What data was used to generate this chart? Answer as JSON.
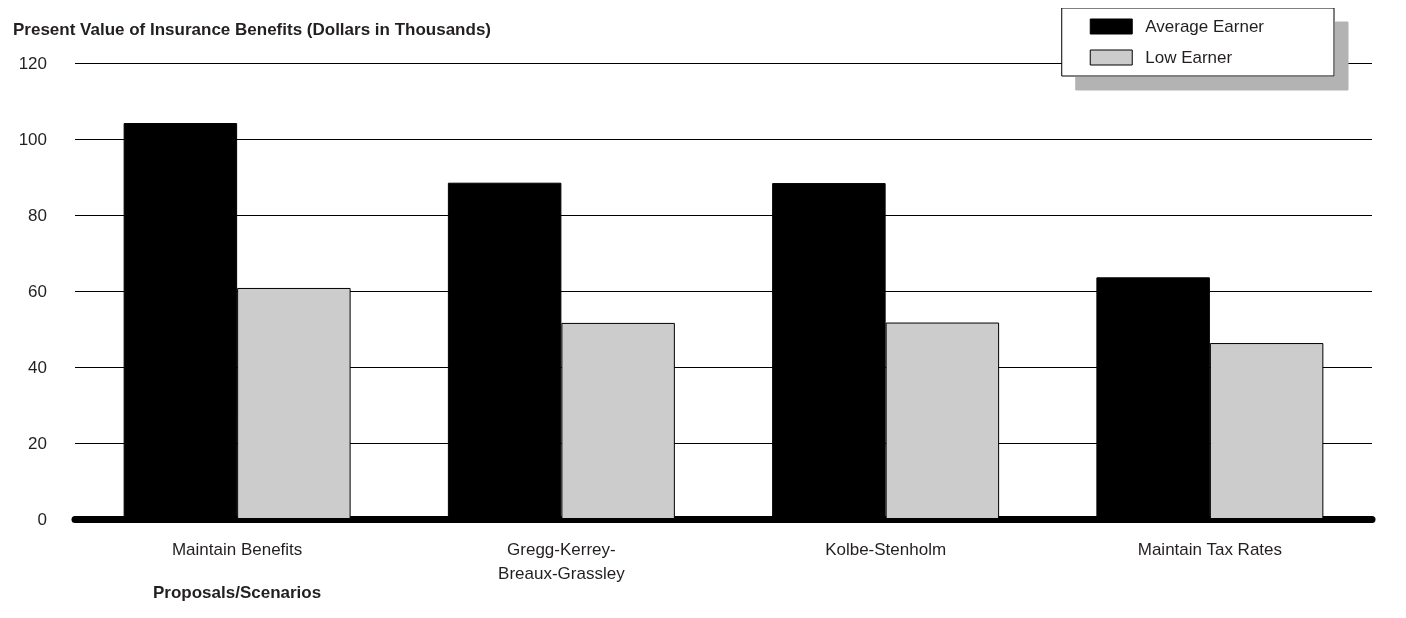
{
  "chart_data": {
    "type": "bar",
    "title": "Present Value of Insurance Benefits (Dollars in Thousands)",
    "xlabel": "Proposals/Scenarios",
    "categories": [
      "Maintain Benefits",
      "Gregg-Kerrey-Breaux-Grassley",
      "Kolbe-Stenholm",
      "Maintain Tax Rates"
    ],
    "series": [
      {
        "name": "Average Earner",
        "color": "#000000",
        "values": [
          104.2,
          88.5,
          88.4,
          63.6
        ]
      },
      {
        "name": "Low Earner",
        "color": "#cccccc",
        "values": [
          60.8,
          51.6,
          51.7,
          46.3
        ]
      }
    ],
    "ylim": [
      0,
      120
    ],
    "yticks": [
      0,
      20,
      40,
      60,
      80,
      100,
      120
    ],
    "grid": "y",
    "legend": "top right"
  }
}
